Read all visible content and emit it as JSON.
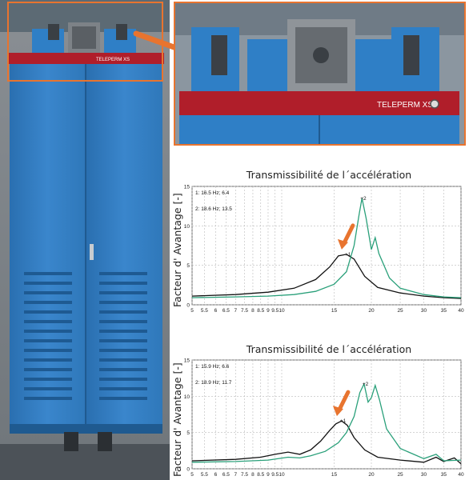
{
  "photo": {
    "brand_label": "TELEPERM XS",
    "zoom_brand_label": "TELEPERM XS"
  },
  "colors": {
    "cabinet_blue": "#2f7fc6",
    "cabinet_top_red": "#b01e2a",
    "accent_orange": "#e8742f",
    "series_black": "#111111",
    "series_green": "#2aa07a"
  },
  "chart_data": [
    {
      "type": "line",
      "title": "Transmissibilité de l´accélération",
      "ylabel": "Facteur d' Avantage [-]",
      "xscale": "log",
      "xlim": [
        5,
        40
      ],
      "ylim": [
        0,
        15
      ],
      "x_ticks": [
        "5",
        "5.5",
        "6",
        "6.5",
        "7",
        "7.5",
        "8",
        "8.5",
        "9",
        "9.5",
        "10",
        "15",
        "20",
        "25",
        "30",
        "35",
        "40"
      ],
      "y_ticks": [
        "0",
        "5",
        "10",
        "15"
      ],
      "annotations": [
        "1: 16.5 Hz; 6.4",
        "2: 18.6 Hz; 13.5"
      ],
      "markers": [
        "+1",
        "+2"
      ],
      "series": [
        {
          "color": "#111111",
          "x": [
            5,
            7,
            9,
            11,
            13,
            14.5,
            15.5,
            16.5,
            17.5,
            19,
            21,
            25,
            30,
            35,
            40
          ],
          "y": [
            1.1,
            1.3,
            1.6,
            2.1,
            3.2,
            4.8,
            6.2,
            6.4,
            5.8,
            3.6,
            2.2,
            1.5,
            1.1,
            0.9,
            0.8
          ]
        },
        {
          "color": "#2aa07a",
          "x": [
            5,
            7,
            9,
            11,
            13,
            15,
            16.5,
            17.5,
            18.2,
            18.6,
            19.2,
            20,
            20.6,
            21.2,
            23,
            25,
            30,
            35,
            40
          ],
          "y": [
            0.9,
            1.0,
            1.1,
            1.3,
            1.7,
            2.6,
            4.2,
            7.5,
            11.5,
            13.5,
            11,
            7,
            8.5,
            6.5,
            3.4,
            2.1,
            1.3,
            1.0,
            0.9
          ]
        }
      ]
    },
    {
      "type": "line",
      "title": "Transmissibilité de l´accélération",
      "ylabel": "Facteur d' Avantage [-]",
      "xscale": "log",
      "xlim": [
        5,
        40
      ],
      "ylim": [
        0,
        15
      ],
      "x_ticks": [
        "5",
        "5.5",
        "6",
        "6.5",
        "7",
        "7.5",
        "8",
        "8.5",
        "9",
        "9.5",
        "10",
        "15",
        "20",
        "25",
        "30",
        "35",
        "40"
      ],
      "y_ticks": [
        "0",
        "5",
        "10",
        "15"
      ],
      "annotations": [
        "1: 15.9 Hz; 6.6",
        "2: 18.9 Hz; 11.7"
      ],
      "markers": [
        "+1",
        "+2"
      ],
      "series": [
        {
          "color": "#111111",
          "x": [
            5,
            7,
            8.5,
            9.5,
            10.5,
            11.5,
            12.5,
            13.5,
            14.5,
            15.2,
            15.9,
            16.6,
            17.5,
            19,
            21,
            25,
            30,
            33,
            35,
            38,
            40
          ],
          "y": [
            1.1,
            1.3,
            1.6,
            2.0,
            2.3,
            2.0,
            2.6,
            3.8,
            5.3,
            6.2,
            6.6,
            6.0,
            4.3,
            2.6,
            1.6,
            1.2,
            0.9,
            1.6,
            1.0,
            1.5,
            0.7
          ]
        },
        {
          "color": "#2aa07a",
          "x": [
            5,
            7,
            9,
            10.5,
            11.5,
            12.5,
            14,
            15.5,
            16.5,
            17.5,
            18.3,
            18.9,
            19.5,
            20,
            20.6,
            21.3,
            22.5,
            25,
            30,
            33,
            35,
            40
          ],
          "y": [
            0.9,
            1.0,
            1.2,
            1.6,
            1.5,
            1.8,
            2.4,
            3.6,
            5.0,
            7.2,
            10.5,
            11.7,
            9.2,
            9.8,
            11.5,
            9.5,
            5.5,
            2.8,
            1.4,
            2.0,
            1.1,
            1.2
          ]
        }
      ]
    }
  ]
}
